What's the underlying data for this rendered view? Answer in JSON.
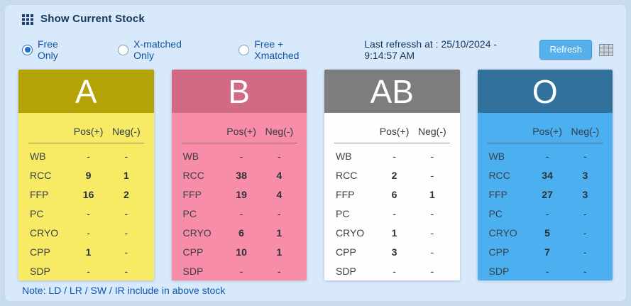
{
  "header": {
    "title": "Show Current Stock"
  },
  "filters": {
    "options": [
      {
        "label": "Free Only",
        "selected": true
      },
      {
        "label": "X-matched Only",
        "selected": false
      },
      {
        "label": "Free + Xmatched",
        "selected": false
      }
    ],
    "last_refresh": "Last refressh at : 25/10/2024 - 9:14:57 AM",
    "refresh_label": "Refresh"
  },
  "table": {
    "col_pos": "Pos(+)",
    "col_neg": "Neg(-)",
    "row_labels": [
      "WB",
      "RCC",
      "FFP",
      "PC",
      "CRYO",
      "CPP",
      "SDP"
    ]
  },
  "cards": [
    {
      "group": "A",
      "header_color": "#b3a306",
      "body_color": "#f7eb66",
      "rows": [
        [
          "-",
          "-"
        ],
        [
          "9",
          "1"
        ],
        [
          "16",
          "2"
        ],
        [
          "-",
          "-"
        ],
        [
          "-",
          "-"
        ],
        [
          "1",
          "-"
        ],
        [
          "-",
          "-"
        ]
      ]
    },
    {
      "group": "B",
      "header_color": "#d06a85",
      "body_color": "#f78da8",
      "rows": [
        [
          "-",
          "-"
        ],
        [
          "38",
          "4"
        ],
        [
          "19",
          "4"
        ],
        [
          "-",
          "-"
        ],
        [
          "6",
          "1"
        ],
        [
          "10",
          "1"
        ],
        [
          "-",
          "-"
        ]
      ]
    },
    {
      "group": "AB",
      "header_color": "#7d7d7d",
      "body_color": "#fefefe",
      "rows": [
        [
          "-",
          "-"
        ],
        [
          "2",
          "-"
        ],
        [
          "6",
          "1"
        ],
        [
          "-",
          "-"
        ],
        [
          "1",
          "-"
        ],
        [
          "3",
          "-"
        ],
        [
          "-",
          "-"
        ]
      ]
    },
    {
      "group": "O",
      "header_color": "#31719b",
      "body_color": "#4cb0f0",
      "rows": [
        [
          "-",
          "-"
        ],
        [
          "34",
          "3"
        ],
        [
          "27",
          "3"
        ],
        [
          "-",
          "-"
        ],
        [
          "5",
          "-"
        ],
        [
          "7",
          "-"
        ],
        [
          "-",
          "-"
        ]
      ]
    }
  ],
  "note": "Note: LD / LR / SW / IR include in above stock",
  "colors": {
    "panel_bg": "#d7e9fb",
    "accent_blue": "#1b6fd0",
    "button_blue": "#55b0ec",
    "title_navy": "#16365c",
    "note_blue": "#0b57b0"
  }
}
